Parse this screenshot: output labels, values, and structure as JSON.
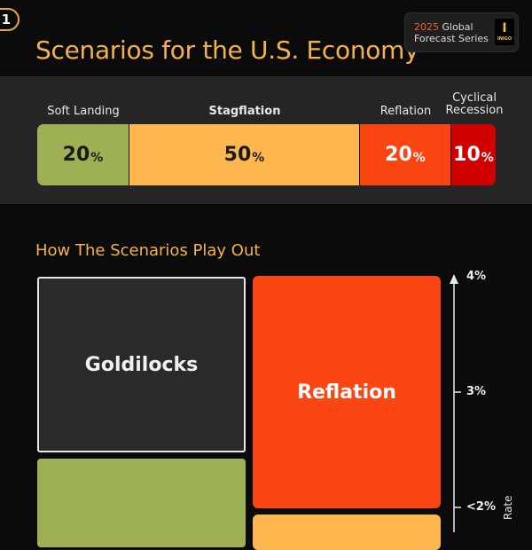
{
  "header": {
    "badge": "1",
    "title": "Scenarios for the U.S. Economy",
    "series_year": "2025",
    "series_line1_rest": " Global",
    "series_line2": "Forecast Series",
    "logo_text": "INIGO"
  },
  "chart_data": [
    {
      "type": "bar",
      "orientation": "horizontal-stacked",
      "categories": [
        "Soft Landing",
        "Stagflation",
        "Reflation",
        "Cyclical Recession"
      ],
      "values": [
        20,
        50,
        20,
        10
      ],
      "unit": "%",
      "colors": [
        "#9db154",
        "#fdb74e",
        "#fb4512",
        "#d00000"
      ]
    },
    {
      "type": "heatmap",
      "subtitle": "How The Scenarios Play Out",
      "cells": [
        {
          "label": "Goldilocks",
          "color": "#2a2a2a"
        },
        {
          "label": "Reflation",
          "color": "#fb4512"
        },
        {
          "label": "",
          "color": "#9db154"
        },
        {
          "label": "",
          "color": "#fdb74e"
        }
      ],
      "y_axis": {
        "ticks": [
          "4%",
          "3%",
          "<2%"
        ],
        "label": "Rate"
      }
    }
  ]
}
